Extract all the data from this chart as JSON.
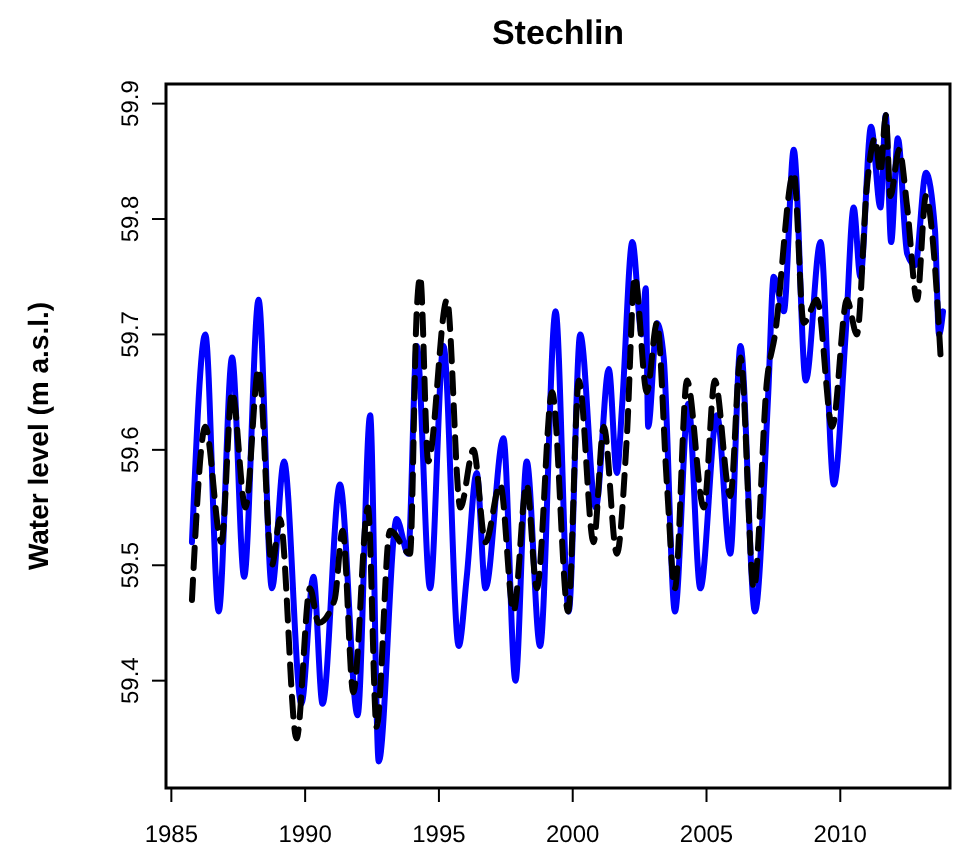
{
  "chart_data": {
    "type": "line",
    "title": "Stechlin",
    "ylabel": "Water level (m a.s.l.)",
    "xlim": [
      1984.8,
      2014.1
    ],
    "ylim": [
      59.307,
      59.917
    ],
    "xticks": [
      1985,
      1990,
      1995,
      2000,
      2005,
      2010
    ],
    "yticks": [
      59.4,
      59.5,
      59.6,
      59.7,
      59.8,
      59.9
    ],
    "grid": false,
    "marker": "none",
    "series": [
      {
        "color": "#0000ff",
        "line_style": "solid",
        "x": [
          1985.77,
          1986.27,
          1986.77,
          1987.27,
          1987.72,
          1988.26,
          1988.76,
          1989.21,
          1989.86,
          1990.31,
          1990.65,
          1991.3,
          1991.96,
          1992.43,
          1992.75,
          1993.42,
          1993.85,
          1994.17,
          1994.67,
          1995.17,
          1995.74,
          1996.04,
          1996.41,
          1996.74,
          1997.41,
          1997.86,
          1998.28,
          1998.78,
          1999.36,
          1999.85,
          2000.28,
          2000.86,
          2001.35,
          2001.65,
          2001.85,
          2002.23,
          2002.58,
          2002.73,
          2002.82,
          2003.15,
          2003.4,
          2003.82,
          2004.32,
          2004.77,
          2005.39,
          2005.89,
          2006.27,
          2006.81,
          2007.31,
          2007.51,
          2007.89,
          2008.26,
          2008.71,
          2009.26,
          2009.76,
          2010.2,
          2010.5,
          2010.75,
          2011.15,
          2011.5,
          2011.7,
          2011.9,
          2012.15,
          2012.5,
          2012.8,
          2013.2,
          2013.54,
          2013.69,
          2013.84
        ],
        "values": [
          59.52,
          59.7,
          59.46,
          59.68,
          59.49,
          59.73,
          59.48,
          59.59,
          59.38,
          59.49,
          59.38,
          59.57,
          59.37,
          59.63,
          59.33,
          59.54,
          59.51,
          59.69,
          59.48,
          59.69,
          59.43,
          59.49,
          59.58,
          59.48,
          59.61,
          59.4,
          59.59,
          59.43,
          59.72,
          59.46,
          59.7,
          59.55,
          59.67,
          59.58,
          59.64,
          59.78,
          59.7,
          59.74,
          59.62,
          59.71,
          59.68,
          59.46,
          59.64,
          59.48,
          59.63,
          59.51,
          59.69,
          59.46,
          59.65,
          59.75,
          59.72,
          59.86,
          59.66,
          59.78,
          59.57,
          59.7,
          59.81,
          59.75,
          59.88,
          59.81,
          59.89,
          59.78,
          59.87,
          59.77,
          59.76,
          59.84,
          59.79,
          59.7,
          59.72
        ]
      },
      {
        "color": "#000000",
        "line_style": "dashed",
        "x": [
          1985.77,
          1986.27,
          1986.87,
          1987.27,
          1987.77,
          1988.26,
          1988.76,
          1989.06,
          1989.68,
          1990.18,
          1990.5,
          1991.1,
          1991.4,
          1991.8,
          1992.35,
          1992.67,
          1993.17,
          1993.92,
          1994.17,
          1994.3,
          1994.6,
          1995.3,
          1995.8,
          1996.29,
          1996.74,
          1997.29,
          1997.79,
          1998.28,
          1998.66,
          1999.23,
          1999.83,
          2000.23,
          2000.78,
          2001.16,
          2001.65,
          2002.02,
          2002.32,
          2002.77,
          2003.15,
          2003.52,
          2003.82,
          2004.27,
          2004.9,
          2005.31,
          2005.89,
          2006.27,
          2006.77,
          2007.26,
          2007.56,
          2008.26,
          2008.63,
          2009.13,
          2009.7,
          2010.25,
          2010.62,
          2011.0,
          2011.3,
          2011.5,
          2011.7,
          2011.87,
          2012.2,
          2012.5,
          2012.87,
          2013.2,
          2013.5,
          2013.75
        ],
        "values": [
          59.47,
          59.62,
          59.52,
          59.65,
          59.55,
          59.67,
          59.5,
          59.54,
          59.35,
          59.48,
          59.45,
          59.47,
          59.53,
          59.39,
          59.55,
          59.36,
          59.53,
          59.51,
          59.72,
          59.75,
          59.59,
          59.73,
          59.55,
          59.6,
          59.52,
          59.57,
          59.46,
          59.57,
          59.48,
          59.65,
          59.46,
          59.66,
          59.52,
          59.62,
          59.51,
          59.61,
          59.75,
          59.65,
          59.71,
          59.57,
          59.48,
          59.66,
          59.55,
          59.66,
          59.56,
          59.68,
          59.48,
          59.66,
          59.7,
          59.84,
          59.71,
          59.73,
          59.62,
          59.73,
          59.7,
          59.83,
          59.87,
          59.84,
          59.89,
          59.82,
          59.86,
          59.81,
          59.73,
          59.82,
          59.77,
          59.68
        ]
      }
    ]
  }
}
